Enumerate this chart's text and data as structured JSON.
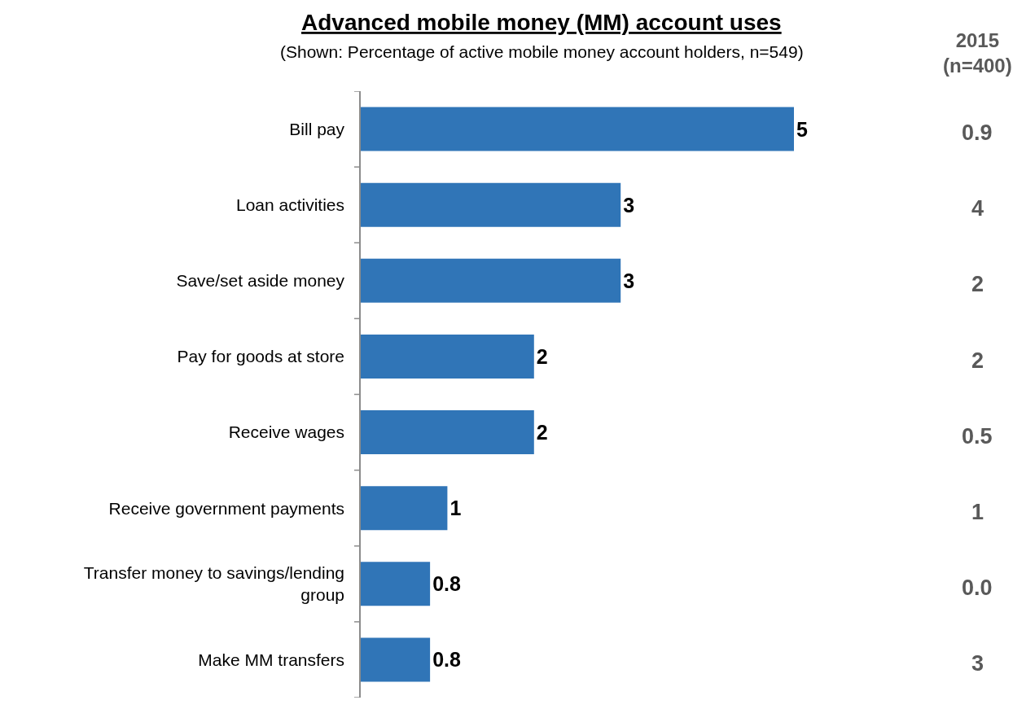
{
  "chart_data": {
    "type": "bar",
    "orientation": "horizontal",
    "title": "Advanced mobile money (MM) account uses",
    "subtitle": "(Shown: Percentage of active mobile money account holders, n=549)",
    "categories": [
      "Bill pay",
      "Loan activities",
      "Save/set aside money",
      "Pay for goods at store",
      "Receive wages",
      "Receive government payments",
      "Transfer money to savings/lending group",
      "Make MM transfers"
    ],
    "values": [
      5,
      3,
      3,
      2,
      2,
      1,
      0.8,
      0.8
    ],
    "color": "#3075b7",
    "data_labels": true,
    "annotations": [
      "2015\n(n=400)",
      "0.9",
      "4",
      "2",
      "2",
      "0.5",
      "1",
      "0.0",
      "3"
    ]
  }
}
